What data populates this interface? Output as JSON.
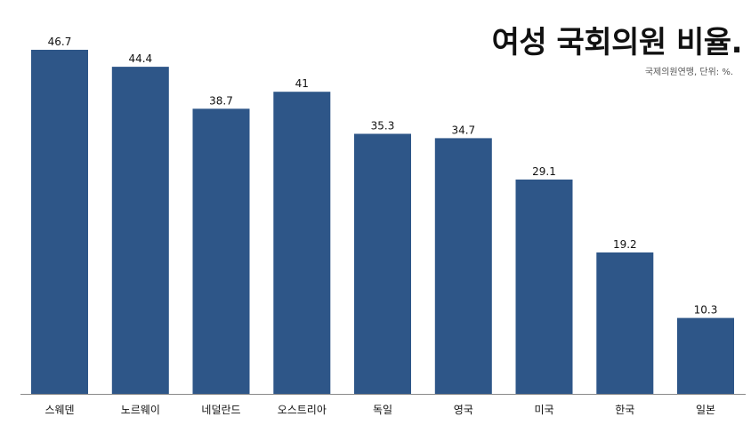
{
  "chart_data": {
    "type": "bar",
    "title": "여성 국회의원 비율.",
    "subtitle": "국제의원연맹, 단위: %.",
    "xlabel": "",
    "ylabel": "",
    "ylim": [
      0,
      46.7
    ],
    "grid": false,
    "legend": "none",
    "bar_color": "#2E5688",
    "categories": [
      "스웨덴",
      "노르웨이",
      "네덜란드",
      "오스트리아",
      "독일",
      "영국",
      "미국",
      "한국",
      "일본"
    ],
    "values": [
      46.7,
      44.4,
      38.7,
      41,
      35.3,
      34.7,
      29.1,
      19.2,
      10.3
    ],
    "value_labels": [
      "46.7",
      "44.4",
      "38.7",
      "41",
      "35.3",
      "34.7",
      "29.1",
      "19.2",
      "10.3"
    ]
  }
}
